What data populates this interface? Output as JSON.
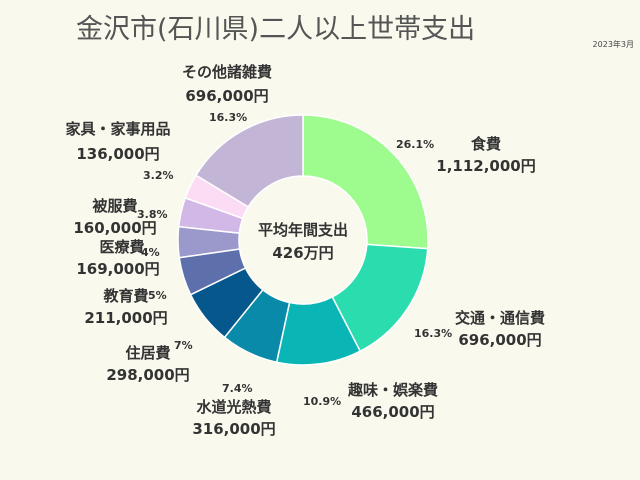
{
  "chart_data": {
    "type": "pie",
    "title": "金沢市(石川県)二人以上世帯支出",
    "date_note": "2023年3月",
    "center_label": "平均年間支出",
    "center_value": "426万円",
    "start_angle_deg": 0,
    "direction": "clockwise",
    "slices": [
      {
        "name": "食費",
        "value": 1112000,
        "value_text": "1,112,000円",
        "pct": "26.1%",
        "color": "#9efb8e"
      },
      {
        "name": "交通・通信費",
        "value": 696000,
        "value_text": "696,000円",
        "pct": "16.3%",
        "color": "#2bdcaf"
      },
      {
        "name": "趣味・娯楽費",
        "value": 466000,
        "value_text": "466,000円",
        "pct": "10.9%",
        "color": "#0ab6b5"
      },
      {
        "name": "水道光熱費",
        "value": 316000,
        "value_text": "316,000円",
        "pct": "7.4%",
        "color": "#0a8aa9"
      },
      {
        "name": "住居費",
        "value": 298000,
        "value_text": "298,000円",
        "pct": "7%",
        "color": "#06578c"
      },
      {
        "name": "教育費",
        "value": 211000,
        "value_text": "211,000円",
        "pct": "5%",
        "color": "#5d70ab"
      },
      {
        "name": "医療費",
        "value": 169000,
        "value_text": "169,000円",
        "pct": "4%",
        "color": "#9b98cc"
      },
      {
        "name": "被服費",
        "value": 160000,
        "value_text": "160,000円",
        "pct": "3.8%",
        "color": "#d2b8e6"
      },
      {
        "name": "家具・家事用品",
        "value": 136000,
        "value_text": "136,000円",
        "pct": "3.2%",
        "color": "#fbdcf4"
      },
      {
        "name": "その他諸雑費",
        "value": 696000,
        "value_text": "696,000円",
        "pct": "16.3%",
        "color": "#c3b5d6"
      }
    ]
  }
}
